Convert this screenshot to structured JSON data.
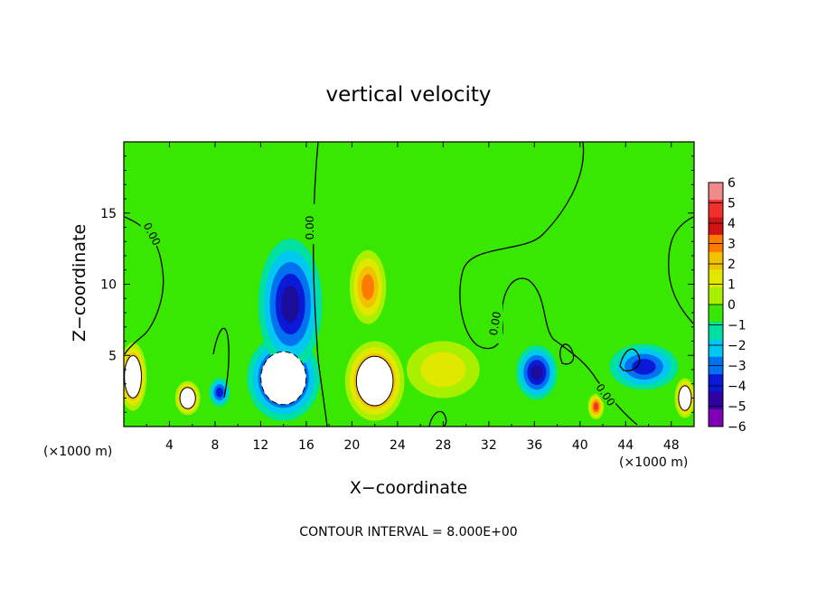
{
  "chart_data": {
    "type": "contour",
    "title": "vertical velocity",
    "xlabel": "X−coordinate",
    "ylabel": "Z−coordinate",
    "x_unit_left": "(×1000 m)",
    "x_unit_right": "(×1000 m)",
    "xlim": [
      0,
      50
    ],
    "ylim": [
      0,
      20
    ],
    "x_ticks": [
      "4",
      "8",
      "12",
      "16",
      "20",
      "24",
      "28",
      "32",
      "36",
      "40",
      "44",
      "48"
    ],
    "y_ticks": [
      "5",
      "10",
      "15"
    ],
    "contour_interval_text": "CONTOUR INTERVAL = 8.000E+00",
    "contour_labels": [
      "0.00",
      "0.00",
      "0.00",
      "0.00"
    ],
    "colorbar": {
      "levels": [
        "6",
        "5",
        "4",
        "3",
        "2",
        "1",
        "0",
        "−1",
        "−2",
        "−3",
        "−4",
        "−5",
        "−6"
      ],
      "colors": [
        "#f08a8a",
        "#f0302a",
        "#d01414",
        "#ff7a00",
        "#f2c200",
        "#e0e800",
        "#a8f000",
        "#38e800",
        "#00e0a0",
        "#00c8f0",
        "#0072f0",
        "#0a18d8",
        "#3000a0",
        "#8000b8"
      ]
    },
    "field": {
      "background": "#38e800",
      "updrafts": [
        {
          "x": 22,
          "z": 3.2,
          "rx": 2.6,
          "rz": 2.8,
          "peak": 6
        },
        {
          "x": 21.4,
          "z": 9.8,
          "rx": 1.6,
          "rz": 2.6,
          "peak": 4
        },
        {
          "x": 0.8,
          "z": 3.5,
          "rx": 1.2,
          "rz": 2.4,
          "peak": 6
        },
        {
          "x": 5.6,
          "z": 2.0,
          "rx": 1.1,
          "rz": 1.2,
          "peak": 6
        },
        {
          "x": 49.2,
          "z": 2.0,
          "rx": 0.9,
          "rz": 1.4,
          "peak": 6
        },
        {
          "x": 41.4,
          "z": 1.4,
          "rx": 0.7,
          "rz": 0.9,
          "peak": 5
        },
        {
          "x": 28,
          "z": 4.0,
          "rx": 3.2,
          "rz": 2.0,
          "peak": 2.2
        }
      ],
      "downdrafts": [
        {
          "x": 14.0,
          "z": 3.4,
          "rx": 3.2,
          "rz": 3.0,
          "peak": 6
        },
        {
          "x": 14.6,
          "z": 8.6,
          "rx": 2.8,
          "rz": 4.6,
          "peak": 4.5
        },
        {
          "x": 36.2,
          "z": 3.8,
          "rx": 1.8,
          "rz": 1.9,
          "peak": 5
        },
        {
          "x": 45.6,
          "z": 4.2,
          "rx": 3.0,
          "rz": 1.6,
          "peak": 3.5
        },
        {
          "x": 8.4,
          "z": 2.4,
          "rx": 0.9,
          "rz": 1.0,
          "peak": 4
        }
      ]
    }
  }
}
